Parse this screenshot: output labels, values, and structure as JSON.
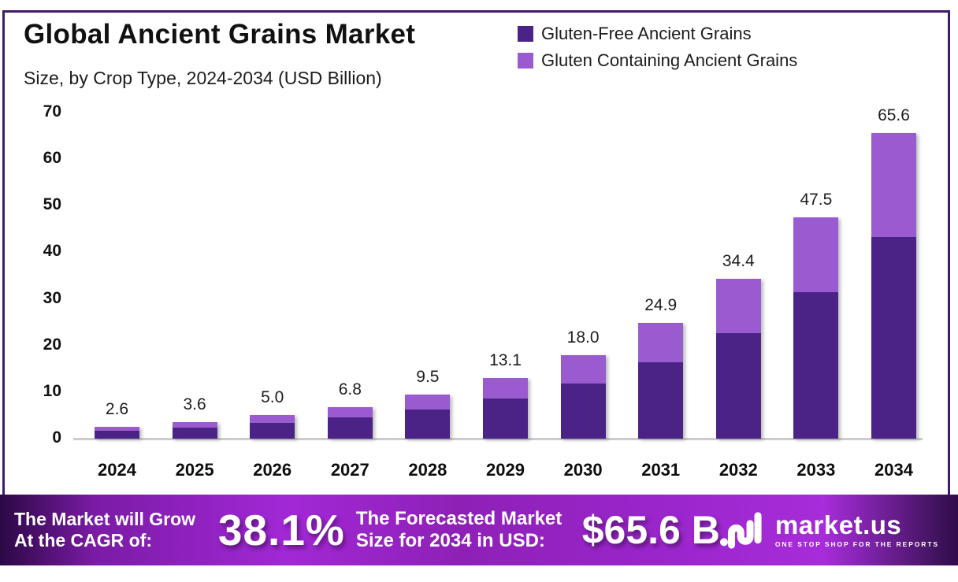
{
  "header": {
    "title": "Global Ancient Grains Market",
    "subtitle": "Size, by Crop Type, 2024-2034 (USD Billion)"
  },
  "legend": {
    "items": [
      {
        "label": "Gluten-Free Ancient Grains",
        "color": "#4b2286"
      },
      {
        "label": "Gluten Containing Ancient Grains",
        "color": "#9a5bd0"
      }
    ]
  },
  "chart_data": {
    "type": "bar",
    "stacked": true,
    "title": "Global Ancient Grains Market Size, by Crop Type, 2024-2034 (USD Billion)",
    "categories": [
      "2024",
      "2025",
      "2026",
      "2027",
      "2028",
      "2029",
      "2030",
      "2031",
      "2032",
      "2033",
      "2034"
    ],
    "series": [
      {
        "name": "Gluten-Free Ancient Grains",
        "color": "#4b2286",
        "values": [
          1.7,
          2.4,
          3.3,
          4.5,
          6.3,
          8.6,
          11.9,
          16.4,
          22.7,
          31.4,
          43.3
        ]
      },
      {
        "name": "Gluten Containing Ancient Grains",
        "color": "#9a5bd0",
        "values": [
          0.9,
          1.2,
          1.7,
          2.3,
          3.2,
          4.5,
          6.1,
          8.5,
          11.7,
          16.1,
          22.3
        ]
      }
    ],
    "totals": [
      2.6,
      3.6,
      5.0,
      6.8,
      9.5,
      13.1,
      18.0,
      24.9,
      34.4,
      47.5,
      65.6
    ],
    "total_labels": [
      "2.6",
      "3.6",
      "5.0",
      "6.8",
      "9.5",
      "13.1",
      "18.0",
      "24.9",
      "34.4",
      "47.5",
      "65.6"
    ],
    "xlabel": "",
    "ylabel": "",
    "ylim": [
      0,
      70
    ],
    "ytick_labels": [
      "0",
      "10",
      "20",
      "30",
      "40",
      "50",
      "60",
      "70"
    ],
    "grid": false,
    "legend_position": "top-right"
  },
  "banner": {
    "cagr_label_line1": "The Market will Grow",
    "cagr_label_line2": "At the CAGR of:",
    "cagr_value": "38.1%",
    "forecast_label_line1": "The Forecasted Market",
    "forecast_label_line2": "Size for 2034 in USD:",
    "forecast_value": "$65.6 B",
    "brand_name": "market.us",
    "brand_tagline": "ONE STOP SHOP FOR THE REPORTS"
  },
  "colors": {
    "frame_border": "#3f1a6d",
    "axis_line": "#cccccc",
    "series_dark": "#4b2286",
    "series_light": "#9a5bd0",
    "banner_left": "#2c0845",
    "banner_bright": "#a72cda",
    "banner_right": "#310b4b",
    "text": "#111111"
  }
}
